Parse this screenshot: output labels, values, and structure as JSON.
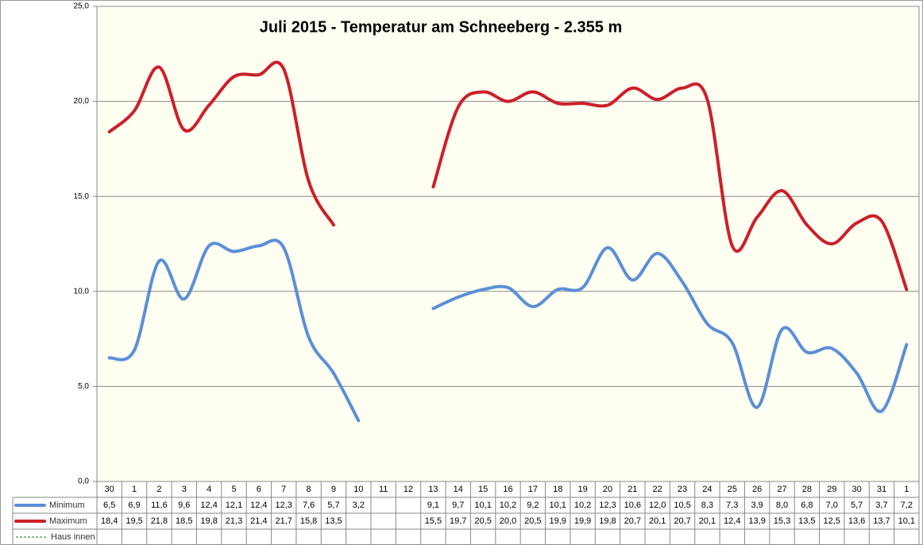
{
  "chart_data": {
    "type": "line",
    "title": "Juli 2015 - Temperatur am Schneeberg - 2.355 m",
    "categories": [
      "30",
      "1",
      "2",
      "3",
      "4",
      "5",
      "6",
      "7",
      "8",
      "9",
      "10",
      "11",
      "12",
      "13",
      "14",
      "15",
      "16",
      "17",
      "18",
      "19",
      "20",
      "21",
      "22",
      "23",
      "24",
      "25",
      "26",
      "27",
      "28",
      "29",
      "30",
      "31",
      "1"
    ],
    "series": [
      {
        "name": "Minimum",
        "color": "#5b8fd6",
        "values": [
          6.5,
          6.9,
          11.6,
          9.6,
          12.4,
          12.1,
          12.4,
          12.3,
          7.6,
          5.7,
          3.2,
          null,
          null,
          9.1,
          9.7,
          10.1,
          10.2,
          9.2,
          10.1,
          10.2,
          12.3,
          10.6,
          12.0,
          10.5,
          8.3,
          7.3,
          3.9,
          8.0,
          6.8,
          7.0,
          5.7,
          3.7,
          7.2
        ],
        "value_labels": [
          "6,5",
          "6,9",
          "11,6",
          "9,6",
          "12,4",
          "12,1",
          "12,4",
          "12,3",
          "7,6",
          "5,7",
          "3,2",
          null,
          null,
          "9,1",
          "9,7",
          "10,1",
          "10,2",
          "9,2",
          "10,1",
          "10,2",
          "12,3",
          "10,6",
          "12,0",
          "10,5",
          "8,3",
          "7,3",
          "3,9",
          "8,0",
          "6,8",
          "7,0",
          "5,7",
          "3,7",
          "7,2"
        ]
      },
      {
        "name": "Maximum",
        "color": "#cc1f2a",
        "values": [
          18.4,
          19.5,
          21.8,
          18.5,
          19.8,
          21.3,
          21.4,
          21.7,
          15.8,
          13.5,
          null,
          null,
          null,
          15.5,
          19.7,
          20.5,
          20.0,
          20.5,
          19.9,
          19.9,
          19.8,
          20.7,
          20.1,
          20.7,
          20.1,
          12.4,
          13.9,
          15.3,
          13.5,
          12.5,
          13.6,
          13.7,
          10.1
        ],
        "value_labels": [
          "18,4",
          "19,5",
          "21,8",
          "18,5",
          "19,8",
          "21,3",
          "21,4",
          "21,7",
          "15,8",
          "13,5",
          null,
          null,
          null,
          "15,5",
          "19,7",
          "20,5",
          "20,0",
          "20,5",
          "19,9",
          "19,9",
          "19,8",
          "20,7",
          "20,1",
          "20,7",
          "20,1",
          "12,4",
          "13,9",
          "15,3",
          "13,5",
          "12,5",
          "13,6",
          "13,7",
          "10,1"
        ]
      },
      {
        "name": "Haus innen",
        "color": "#1a7a1a",
        "dash": true,
        "values": [
          null,
          null,
          null,
          null,
          null,
          null,
          null,
          null,
          null,
          null,
          null,
          null,
          null,
          null,
          null,
          null,
          null,
          null,
          null,
          null,
          null,
          null,
          null,
          null,
          null,
          null,
          null,
          null,
          null,
          null,
          null,
          null,
          null
        ]
      }
    ],
    "ylim": [
      0,
      25
    ],
    "yticks": [
      {
        "value": 0,
        "label": "0,0"
      },
      {
        "value": 5,
        "label": "5,0"
      },
      {
        "value": 10,
        "label": "10,0"
      },
      {
        "value": 15,
        "label": "15,0"
      },
      {
        "value": 20,
        "label": "20,0"
      },
      {
        "value": 25,
        "label": "25,0"
      }
    ],
    "grid": true
  }
}
